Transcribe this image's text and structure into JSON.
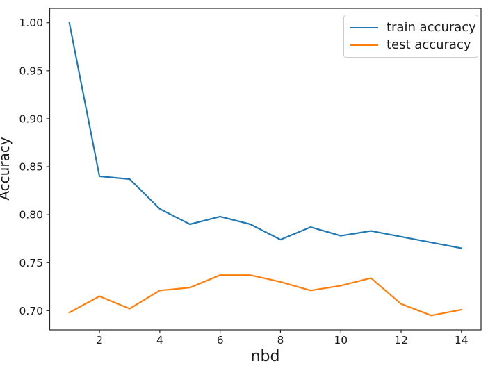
{
  "chart_data": {
    "type": "line",
    "title": "",
    "xlabel": "nbd",
    "ylabel": "Accuracy",
    "x": [
      1,
      2,
      3,
      4,
      5,
      6,
      7,
      8,
      9,
      10,
      11,
      12,
      13,
      14
    ],
    "series": [
      {
        "name": "train accuracy",
        "color": "#1f77b4",
        "values": [
          1.0,
          0.84,
          0.837,
          0.806,
          0.79,
          0.798,
          0.79,
          0.774,
          0.787,
          0.778,
          0.783,
          0.777,
          0.771,
          0.765
        ]
      },
      {
        "name": "test accuracy",
        "color": "#ff7f0e",
        "values": [
          0.698,
          0.715,
          0.702,
          0.721,
          0.724,
          0.737,
          0.737,
          0.73,
          0.721,
          0.726,
          0.734,
          0.707,
          0.695,
          0.701
        ]
      }
    ],
    "xlim": [
      0.35,
      14.65
    ],
    "ylim": [
      0.68,
      1.015
    ],
    "x_ticks": [
      2,
      4,
      6,
      8,
      10,
      12,
      14
    ],
    "x_tick_labels": [
      "2",
      "4",
      "6",
      "8",
      "10",
      "12",
      "14"
    ],
    "y_ticks": [
      0.7,
      0.75,
      0.8,
      0.85,
      0.9,
      0.95,
      1.0
    ],
    "y_tick_labels": [
      "0.70",
      "0.75",
      "0.80",
      "0.85",
      "0.90",
      "0.95",
      "1.00"
    ],
    "grid": false,
    "legend_position": "upper right",
    "axis_color": "#262626",
    "text_color": "#1a1a1a"
  }
}
